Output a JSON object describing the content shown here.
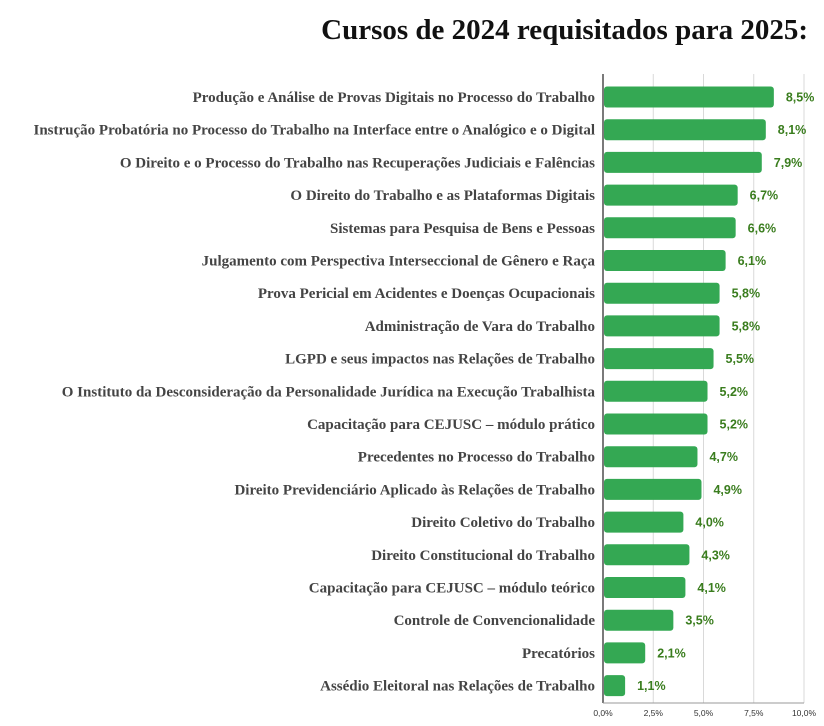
{
  "chart_data": {
    "type": "bar",
    "orientation": "horizontal",
    "title": "Cursos de 2024 requisitados para 2025:",
    "categories": [
      "Produção e Análise de Provas Digitais no Processo do Trabalho",
      "Instrução Probatória no Processo do Trabalho na Interface entre o Analógico e o Digital",
      "O Direito e o Processo do Trabalho nas Recuperações Judiciais e Falências",
      "O Direito do Trabalho e as Plataformas Digitais",
      "Sistemas para Pesquisa de Bens e Pessoas",
      "Julgamento com Perspectiva Interseccional de Gênero e Raça",
      "Prova Pericial em Acidentes e Doenças Ocupacionais",
      "Administração de Vara do Trabalho",
      "LGPD e seus impactos nas Relações de Trabalho",
      "O Instituto da Desconsideração da Personalidade Jurídica na Execução Trabalhista",
      "Capacitação para CEJUSC – módulo prático",
      "Precedentes no Processo do Trabalho",
      "Direito Previdenciário Aplicado às Relações de Trabalho",
      "Direito Coletivo do Trabalho",
      "Direito Constitucional do Trabalho",
      "Capacitação para CEJUSC – módulo teórico",
      "Controle de Convencionalidade",
      "Precatórios",
      "Assédio Eleitoral nas Relações de Trabalho"
    ],
    "values": [
      8.5,
      8.1,
      7.9,
      6.7,
      6.6,
      6.1,
      5.8,
      5.8,
      5.5,
      5.2,
      5.2,
      4.7,
      4.9,
      4.0,
      4.3,
      4.1,
      3.5,
      2.1,
      1.1
    ],
    "value_labels": [
      "8,5%",
      "8,1%",
      "7,9%",
      "6,7%",
      "6,6%",
      "6,1%",
      "5,8%",
      "5,8%",
      "5,5%",
      "5,2%",
      "5,2%",
      "4,7%",
      "4,9%",
      "4,0%",
      "4,3%",
      "4,1%",
      "3,5%",
      "2,1%",
      "1,1%"
    ],
    "xlim": [
      0,
      10
    ],
    "ticks": [
      0,
      2.5,
      5,
      7.5,
      10
    ],
    "tick_labels": [
      "0,0%",
      "2,5%",
      "5,0%",
      "7,5%",
      "10,0%"
    ],
    "grid": true,
    "legend": "none",
    "colors": {
      "bar": "#34a853",
      "value_label": "#3a7d1e",
      "grid": "#d9d9d9",
      "axis": "#222222"
    }
  }
}
